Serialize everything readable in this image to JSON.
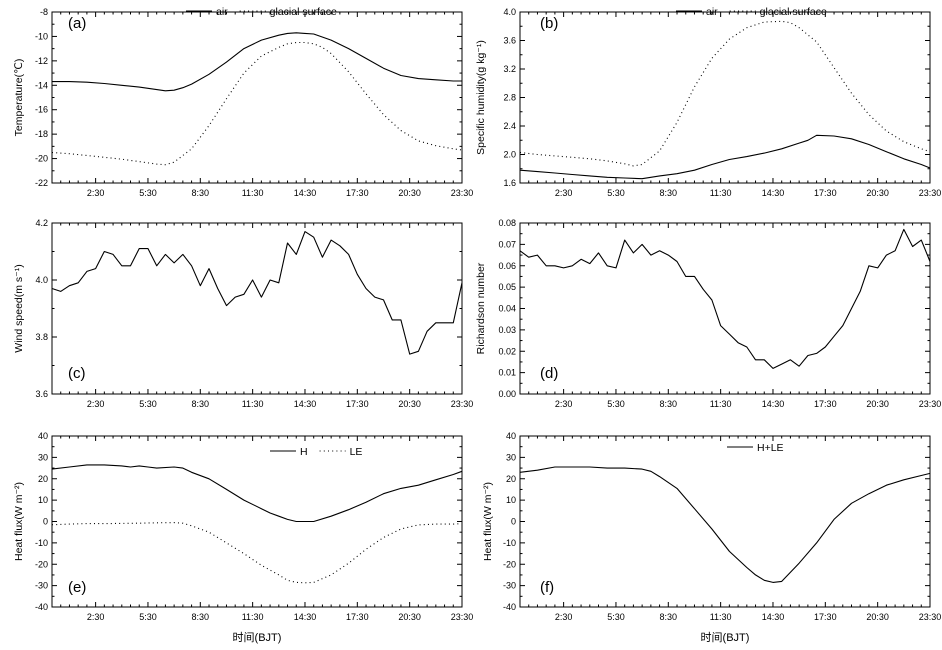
{
  "x_axis": {
    "label": "时间(BJT)",
    "ticks": [
      "2:30",
      "5:30",
      "8:30",
      "11:30",
      "14:30",
      "17:30",
      "20:30",
      "23:30"
    ],
    "tick_hours": [
      2.5,
      5.5,
      8.5,
      11.5,
      14.5,
      17.5,
      20.5,
      23.5
    ],
    "range_hours": [
      0,
      23.5
    ]
  },
  "chart_data": [
    {
      "panel": "(a)",
      "type": "line",
      "ylabel": "Temperature(℃)",
      "yticks": [
        "-8",
        "-10",
        "-12",
        "-14",
        "-16",
        "-18",
        "-20",
        "-22"
      ],
      "ylim": [
        -22,
        -8
      ],
      "legend": [
        "air",
        "glacial surface"
      ],
      "series": [
        {
          "name": "air",
          "style": "solid",
          "x": [
            0,
            1,
            2,
            3,
            4,
            5,
            6,
            6.5,
            7,
            7.5,
            8,
            9,
            10,
            11,
            12,
            13,
            13.5,
            14,
            14.5,
            15,
            16,
            17,
            18,
            19,
            20,
            21,
            22,
            23,
            23.5
          ],
          "y": [
            -13.7,
            -13.7,
            -13.75,
            -13.85,
            -14.0,
            -14.15,
            -14.35,
            -14.45,
            -14.4,
            -14.2,
            -13.9,
            -13.1,
            -12.1,
            -11.0,
            -10.3,
            -9.9,
            -9.75,
            -9.7,
            -9.75,
            -9.8,
            -10.3,
            -11.0,
            -11.8,
            -12.6,
            -13.2,
            -13.45,
            -13.55,
            -13.65,
            -13.65
          ]
        },
        {
          "name": "glacial surface",
          "style": "dotted",
          "x": [
            0,
            1,
            2,
            3,
            4,
            5,
            6,
            6.5,
            7,
            8,
            9,
            10,
            11,
            12,
            13,
            13.5,
            14,
            14.5,
            15,
            15.5,
            16,
            17,
            18,
            19,
            20,
            21,
            22,
            23,
            23.5
          ],
          "y": [
            -19.5,
            -19.6,
            -19.75,
            -19.9,
            -20.05,
            -20.25,
            -20.45,
            -20.5,
            -20.3,
            -19.2,
            -17.3,
            -15.1,
            -13.0,
            -11.6,
            -10.9,
            -10.6,
            -10.5,
            -10.5,
            -10.6,
            -10.9,
            -11.4,
            -12.9,
            -14.7,
            -16.4,
            -17.7,
            -18.55,
            -18.95,
            -19.2,
            -19.3
          ]
        }
      ]
    },
    {
      "panel": "(b)",
      "type": "line",
      "ylabel": "Specific humidity(g kg⁻¹)",
      "yticks": [
        "4.0",
        "3.6",
        "3.2",
        "2.8",
        "2.4",
        "2.0",
        "1.6"
      ],
      "ylim": [
        1.6,
        4.0
      ],
      "legend": [
        "air",
        "glacial surface"
      ],
      "series": [
        {
          "name": "air",
          "style": "solid",
          "x": [
            0,
            1,
            2,
            3,
            4,
            5,
            6,
            7,
            8,
            9,
            10,
            11,
            12,
            13,
            14,
            15,
            16,
            16.5,
            17,
            18,
            19,
            20,
            21,
            22,
            23,
            23.5
          ],
          "y": [
            1.78,
            1.76,
            1.74,
            1.72,
            1.7,
            1.68,
            1.67,
            1.66,
            1.7,
            1.73,
            1.78,
            1.86,
            1.93,
            1.97,
            2.02,
            2.08,
            2.16,
            2.2,
            2.27,
            2.26,
            2.22,
            2.14,
            2.04,
            1.94,
            1.86,
            1.81
          ]
        },
        {
          "name": "glacial surface",
          "style": "dotted",
          "x": [
            0,
            1,
            2,
            3,
            4,
            5,
            6,
            6.5,
            7,
            8,
            9,
            10,
            11,
            12,
            13,
            14,
            15,
            15.5,
            16,
            17,
            18,
            19,
            20,
            21,
            22,
            23,
            23.5
          ],
          "y": [
            2.03,
            2.0,
            1.98,
            1.96,
            1.94,
            1.91,
            1.87,
            1.84,
            1.86,
            2.05,
            2.45,
            2.95,
            3.35,
            3.62,
            3.78,
            3.86,
            3.87,
            3.85,
            3.78,
            3.58,
            3.22,
            2.86,
            2.56,
            2.33,
            2.18,
            2.08,
            2.04
          ]
        }
      ]
    },
    {
      "panel": "(c)",
      "type": "line",
      "ylabel": "Wind speed(m s⁻¹)",
      "yticks": [
        "4.2",
        "4.0",
        "3.8",
        "3.6"
      ],
      "ylim": [
        3.6,
        4.2
      ],
      "legend": [],
      "series": [
        {
          "name": "wind",
          "style": "solid",
          "x": [
            0,
            0.5,
            1,
            1.5,
            2,
            2.5,
            3,
            3.5,
            4,
            4.5,
            5,
            5.5,
            6,
            6.5,
            7,
            7.5,
            8,
            8.5,
            9,
            9.5,
            10,
            10.5,
            11,
            11.5,
            12,
            12.5,
            13,
            13.5,
            14,
            14.5,
            15,
            15.5,
            16,
            16.5,
            17,
            17.5,
            18,
            18.5,
            19,
            19.5,
            20,
            20.5,
            21,
            21.5,
            22,
            22.5,
            23,
            23.5
          ],
          "y": [
            3.97,
            3.96,
            3.98,
            3.99,
            4.03,
            4.04,
            4.1,
            4.09,
            4.05,
            4.05,
            4.11,
            4.11,
            4.05,
            4.09,
            4.06,
            4.09,
            4.05,
            3.98,
            4.04,
            3.97,
            3.91,
            3.94,
            3.95,
            4.0,
            3.94,
            4.0,
            3.99,
            4.13,
            4.09,
            4.17,
            4.15,
            4.08,
            4.14,
            4.12,
            4.09,
            4.02,
            3.97,
            3.94,
            3.93,
            3.86,
            3.86,
            3.74,
            3.75,
            3.82,
            3.85,
            3.85,
            3.85,
            3.99
          ]
        }
      ]
    },
    {
      "panel": "(d)",
      "type": "line",
      "ylabel": "Richardson number",
      "yticks": [
        "0.08",
        "0.07",
        "0.06",
        "0.05",
        "0.04",
        "0.03",
        "0.02",
        "0.01",
        "0.00"
      ],
      "ylim": [
        0.0,
        0.08
      ],
      "legend": [],
      "series": [
        {
          "name": "Ri",
          "style": "solid",
          "x": [
            0,
            0.5,
            1,
            1.5,
            2,
            2.5,
            3,
            3.5,
            4,
            4.5,
            5,
            5.5,
            6,
            6.5,
            7,
            7.5,
            8,
            8.5,
            9,
            9.5,
            10,
            10.5,
            11,
            11.5,
            12,
            12.5,
            13,
            13.5,
            14,
            14.5,
            15,
            15.5,
            16,
            16.5,
            17,
            17.5,
            18,
            18.5,
            19,
            19.5,
            20,
            20.5,
            21,
            21.5,
            22,
            22.5,
            23,
            23.5
          ],
          "y": [
            0.067,
            0.064,
            0.065,
            0.06,
            0.06,
            0.059,
            0.06,
            0.063,
            0.061,
            0.066,
            0.06,
            0.059,
            0.072,
            0.066,
            0.07,
            0.065,
            0.067,
            0.065,
            0.062,
            0.055,
            0.055,
            0.049,
            0.044,
            0.032,
            0.028,
            0.024,
            0.022,
            0.016,
            0.016,
            0.012,
            0.014,
            0.016,
            0.013,
            0.018,
            0.019,
            0.022,
            0.027,
            0.032,
            0.04,
            0.048,
            0.06,
            0.059,
            0.065,
            0.067,
            0.077,
            0.069,
            0.072,
            0.062
          ]
        }
      ]
    },
    {
      "panel": "(e)",
      "type": "line",
      "ylabel": "Heat flux(W m⁻²)",
      "yticks": [
        "40",
        "30",
        "20",
        "10",
        "0",
        "-10",
        "-20",
        "-30",
        "-40"
      ],
      "ylim": [
        -40,
        40
      ],
      "legend": [
        "H",
        "LE"
      ],
      "series": [
        {
          "name": "H",
          "style": "solid",
          "x": [
            0,
            1,
            2,
            3,
            4,
            4.5,
            5,
            5.5,
            6,
            7,
            7.5,
            8,
            9,
            10,
            11,
            12,
            12.5,
            13,
            13.5,
            14,
            15,
            16,
            17,
            18,
            19,
            20,
            21,
            22,
            23,
            23.5
          ],
          "y": [
            24.5,
            25.5,
            26.5,
            26.5,
            26,
            25.5,
            26,
            25.5,
            25,
            25.5,
            25,
            23,
            20,
            15,
            10,
            6,
            4,
            2.5,
            1,
            0,
            0,
            2.5,
            5.5,
            9,
            13,
            15.5,
            17,
            19.5,
            22,
            23.5
          ]
        },
        {
          "name": "LE",
          "style": "dotted",
          "x": [
            0,
            1,
            2,
            3,
            4,
            5,
            6,
            7,
            7.5,
            8,
            9,
            10,
            11,
            12,
            13,
            13.5,
            14,
            14.5,
            15,
            16,
            17,
            18,
            19,
            20,
            21,
            22,
            23,
            23.5
          ],
          "y": [
            -1.5,
            -1.2,
            -1,
            -1,
            -0.9,
            -0.8,
            -0.6,
            -0.5,
            -0.8,
            -2,
            -5,
            -10,
            -15,
            -20.5,
            -25,
            -27.5,
            -28.5,
            -28.7,
            -28.5,
            -25,
            -19.5,
            -13,
            -7.5,
            -3.5,
            -1.6,
            -1.2,
            -1.2,
            -1
          ]
        }
      ]
    },
    {
      "panel": "(f)",
      "type": "line",
      "ylabel": "Heat flux(W m⁻²)",
      "yticks": [
        "40",
        "30",
        "20",
        "10",
        "0",
        "-10",
        "-20",
        "-30",
        "-40"
      ],
      "ylim": [
        -40,
        40
      ],
      "legend": [
        "H+LE"
      ],
      "series": [
        {
          "name": "H+LE",
          "style": "solid",
          "x": [
            0,
            1,
            2,
            3,
            4,
            5,
            6,
            7,
            7.5,
            8,
            9,
            10,
            11,
            12,
            13,
            13.5,
            14,
            14.5,
            15,
            16,
            17,
            18,
            19,
            20,
            21,
            22,
            23,
            23.5
          ],
          "y": [
            23,
            24,
            25.5,
            25.5,
            25.5,
            25,
            25,
            24.5,
            23.5,
            21,
            15.5,
            6,
            -3.5,
            -14,
            -21.5,
            -25,
            -27.5,
            -28.5,
            -28,
            -19.5,
            -10,
            1,
            8.5,
            13,
            17,
            19.5,
            21.5,
            22.5
          ]
        }
      ]
    }
  ]
}
